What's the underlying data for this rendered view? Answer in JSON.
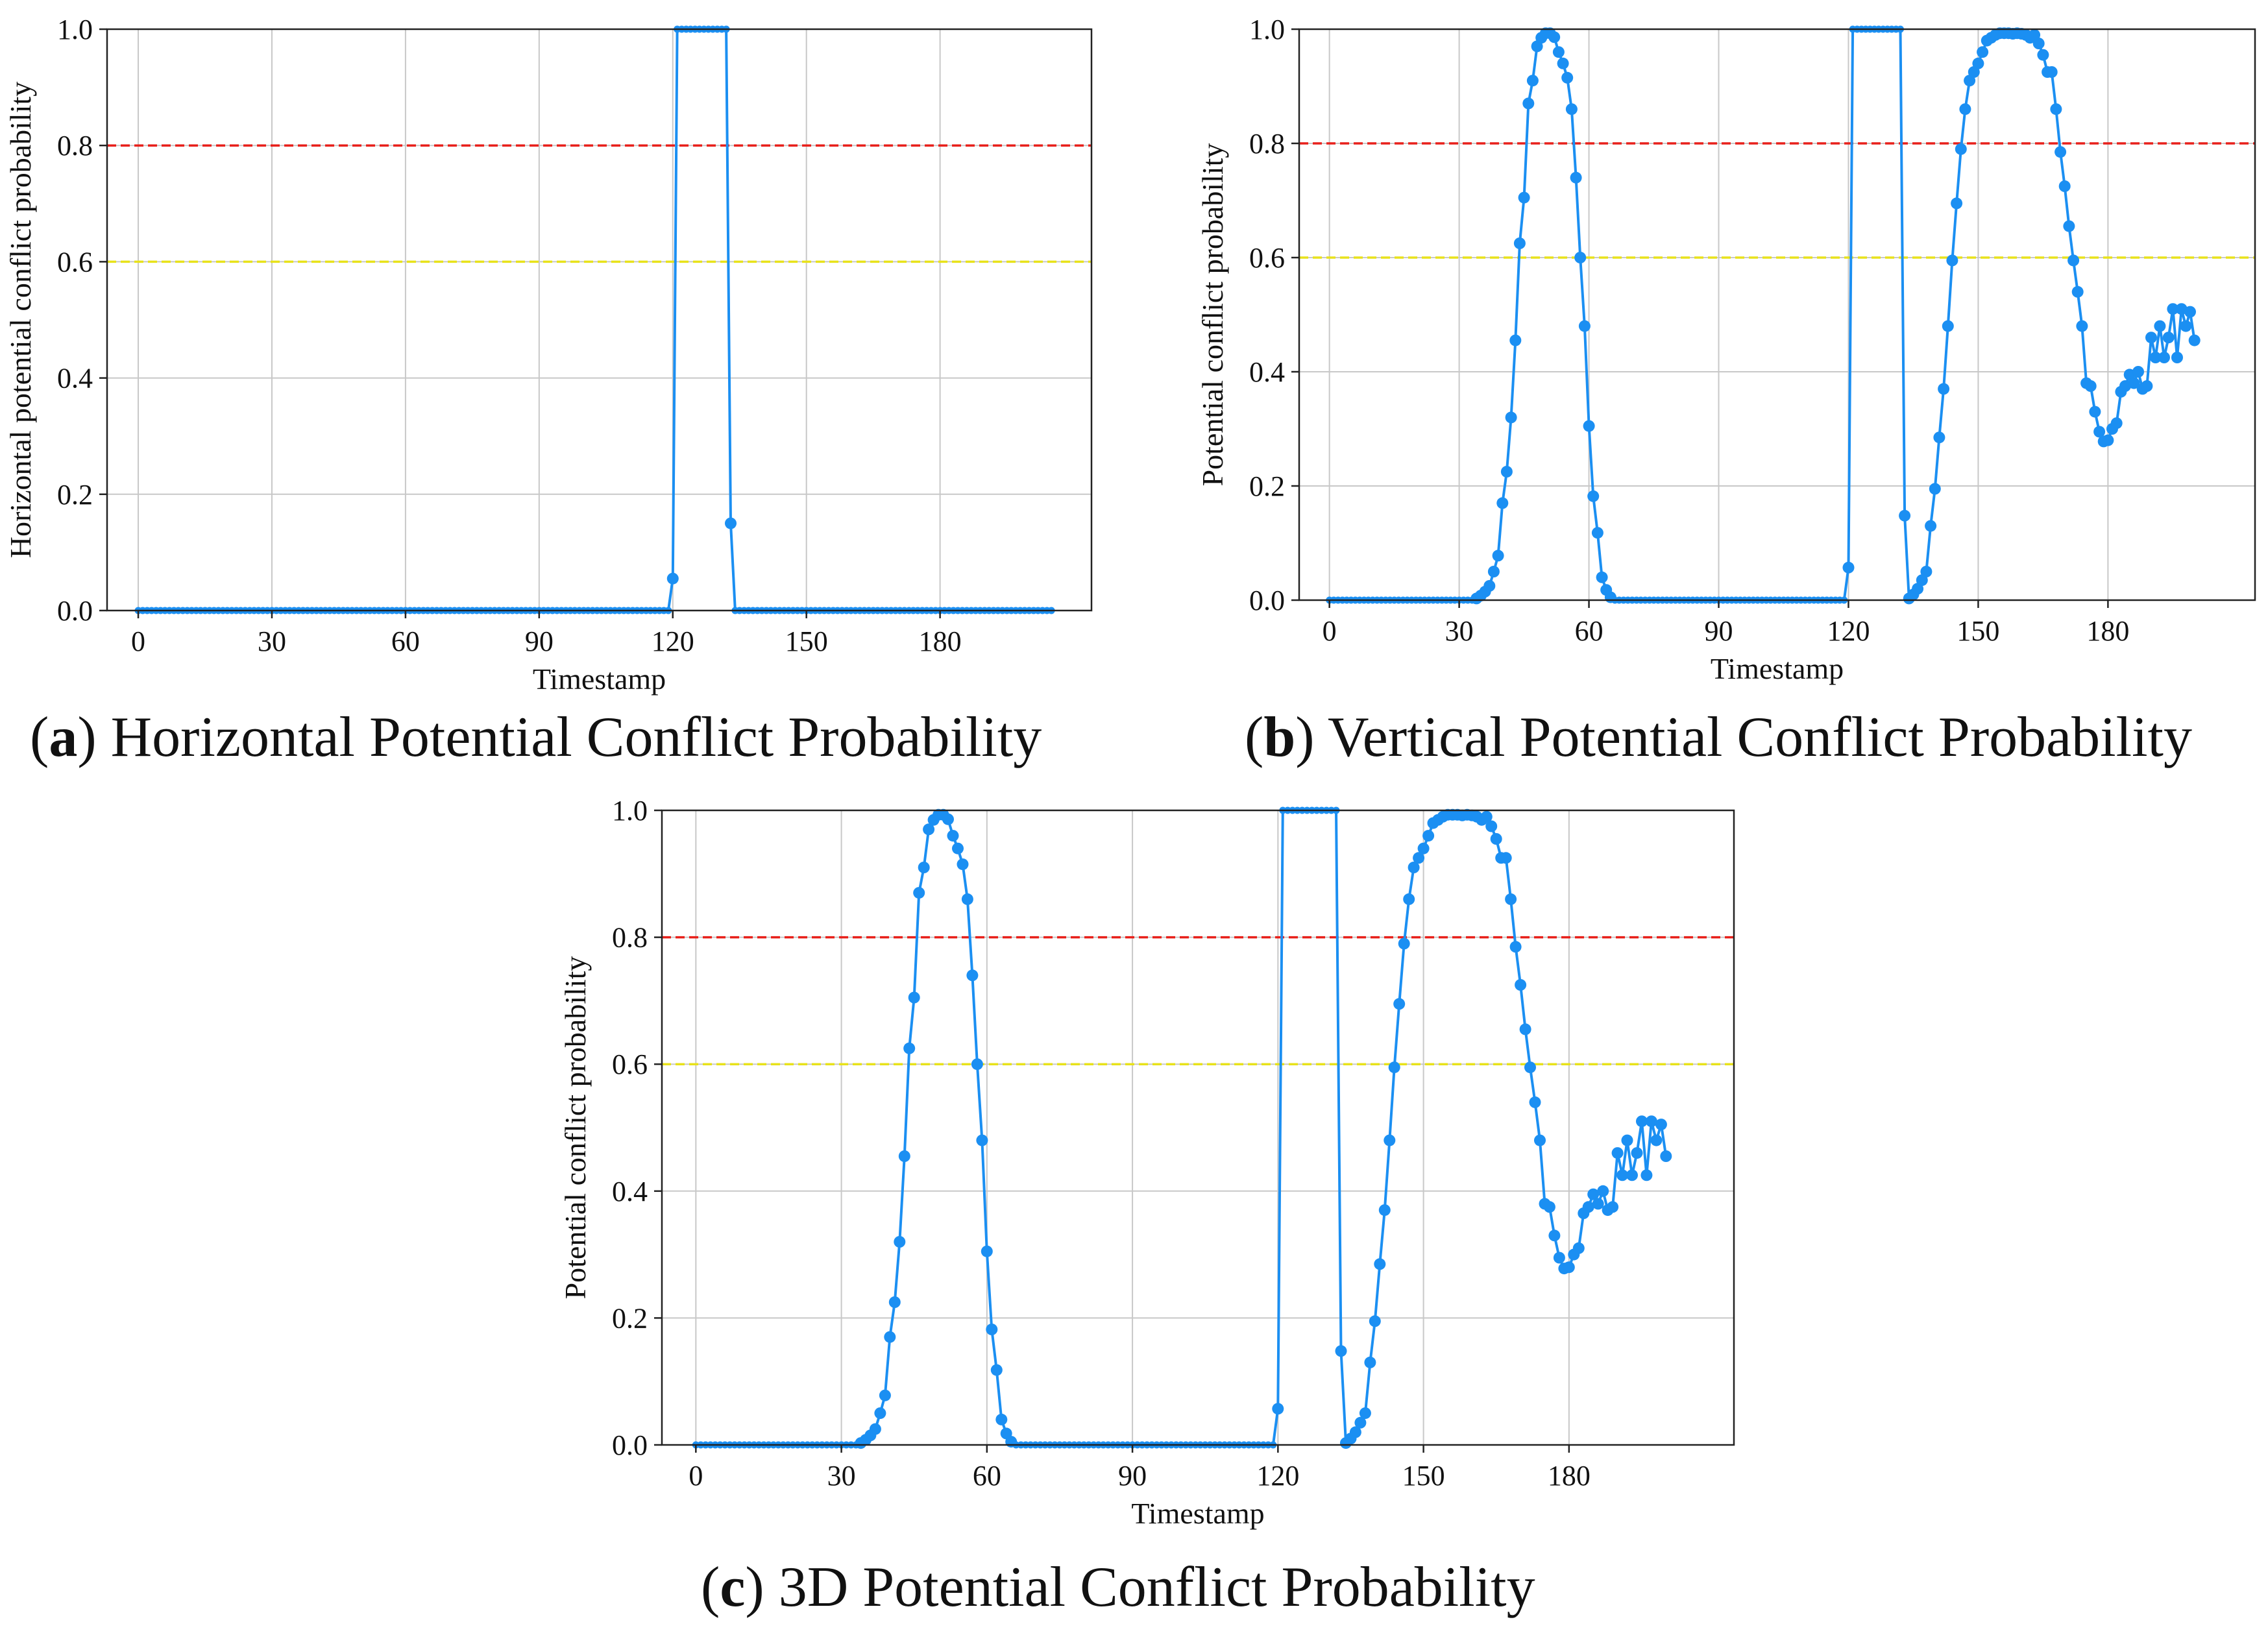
{
  "captions": [
    {
      "letter": "a",
      "text": " Horizontal Potential Conflict Probability"
    },
    {
      "letter": "b",
      "text": " Vertical Potential Conflict Probability"
    },
    {
      "letter": "c",
      "text": " 3D Potential Conflict Probability"
    }
  ],
  "colors": {
    "series": "#1b8ff2",
    "red_line": "#e8201b",
    "yellow_line": "#e8e21b",
    "grid": "#c8c8c8"
  },
  "chart_data": [
    {
      "type": "line",
      "title": "",
      "xlabel": "Timestamp",
      "ylabel": "Horizontal potential conflict probability",
      "xlim": [
        -7,
        214
      ],
      "ylim": [
        0,
        1
      ],
      "xticks": [
        0,
        30,
        60,
        90,
        120,
        150,
        180
      ],
      "yticks": [
        0.0,
        0.2,
        0.4,
        0.6,
        0.8,
        1.0
      ],
      "hlines": [
        {
          "y": 0.8,
          "color": "red",
          "style": "dashed"
        },
        {
          "y": 0.6,
          "color": "yellow",
          "style": "dashed"
        }
      ],
      "series": [
        {
          "name": "Horizontal",
          "points": [
            [
              0,
              0
            ],
            [
              119,
              0
            ],
            [
              120,
              0.055
            ],
            [
              121,
              1.0
            ],
            [
              132,
              1.0
            ],
            [
              133,
              0.15
            ],
            [
              134,
              0
            ],
            [
              205,
              0
            ]
          ]
        }
      ]
    },
    {
      "type": "line",
      "title": "",
      "xlabel": "Timestamp",
      "ylabel": "Potential conflict probability",
      "xlim": [
        -7,
        214
      ],
      "ylim": [
        0,
        1
      ],
      "xticks": [
        0,
        30,
        60,
        90,
        120,
        150,
        180
      ],
      "yticks": [
        0.0,
        0.2,
        0.4,
        0.6,
        0.8,
        1.0
      ],
      "hlines": [
        {
          "y": 0.8,
          "color": "red",
          "style": "dashed"
        },
        {
          "y": 0.6,
          "color": "yellow",
          "style": "dashed"
        }
      ],
      "series": [
        {
          "name": "Vertical",
          "points": [
            [
              0,
              0
            ],
            [
              33,
              0
            ],
            [
              34,
              0.003
            ],
            [
              35,
              0.008
            ],
            [
              36,
              0.015
            ],
            [
              37,
              0.025
            ],
            [
              38,
              0.05
            ],
            [
              39,
              0.078
            ],
            [
              40,
              0.17
            ],
            [
              41,
              0.225
            ],
            [
              42,
              0.32
            ],
            [
              43,
              0.455
            ],
            [
              44,
              0.625
            ],
            [
              45,
              0.705
            ],
            [
              46,
              0.87
            ],
            [
              47,
              0.91
            ],
            [
              48,
              0.97
            ],
            [
              49,
              0.985
            ],
            [
              50,
              0.993
            ],
            [
              51,
              0.993
            ],
            [
              52,
              0.986
            ],
            [
              53,
              0.96
            ],
            [
              54,
              0.94
            ],
            [
              55,
              0.915
            ],
            [
              56,
              0.86
            ],
            [
              57,
              0.74
            ],
            [
              58,
              0.6
            ],
            [
              59,
              0.48
            ],
            [
              60,
              0.305
            ],
            [
              61,
              0.182
            ],
            [
              62,
              0.118
            ],
            [
              63,
              0.04
            ],
            [
              64,
              0.018
            ],
            [
              65,
              0.005
            ],
            [
              66,
              0
            ],
            [
              119,
              0
            ],
            [
              120,
              0.057
            ],
            [
              121,
              1.0
            ],
            [
              132,
              1.0
            ],
            [
              133,
              0.148
            ],
            [
              134,
              0.003
            ],
            [
              135,
              0.01
            ],
            [
              136,
              0.02
            ],
            [
              137,
              0.035
            ],
            [
              138,
              0.05
            ],
            [
              139,
              0.13
            ],
            [
              140,
              0.195
            ],
            [
              141,
              0.285
            ],
            [
              142,
              0.37
            ],
            [
              143,
              0.48
            ],
            [
              144,
              0.595
            ],
            [
              145,
              0.695
            ],
            [
              146,
              0.79
            ],
            [
              147,
              0.86
            ],
            [
              148,
              0.91
            ],
            [
              149,
              0.925
            ],
            [
              150,
              0.94
            ],
            [
              151,
              0.96
            ],
            [
              152,
              0.98
            ],
            [
              153,
              0.985
            ],
            [
              154,
              0.99
            ],
            [
              155,
              0.993
            ],
            [
              156,
              0.993
            ],
            [
              157,
              0.993
            ],
            [
              158,
              0.992
            ],
            [
              159,
              0.993
            ],
            [
              160,
              0.992
            ],
            [
              161,
              0.99
            ],
            [
              162,
              0.985
            ],
            [
              163,
              0.99
            ],
            [
              164,
              0.975
            ],
            [
              165,
              0.955
            ],
            [
              166,
              0.925
            ],
            [
              167,
              0.925
            ],
            [
              168,
              0.86
            ],
            [
              169,
              0.785
            ],
            [
              170,
              0.725
            ],
            [
              171,
              0.655
            ],
            [
              172,
              0.595
            ],
            [
              173,
              0.54
            ],
            [
              174,
              0.48
            ],
            [
              175,
              0.38
            ],
            [
              176,
              0.375
            ],
            [
              177,
              0.33
            ],
            [
              178,
              0.295
            ],
            [
              179,
              0.278
            ],
            [
              180,
              0.28
            ],
            [
              181,
              0.3
            ],
            [
              182,
              0.31
            ],
            [
              183,
              0.365
            ],
            [
              184,
              0.375
            ],
            [
              185,
              0.395
            ],
            [
              186,
              0.38
            ],
            [
              187,
              0.4
            ],
            [
              188,
              0.37
            ],
            [
              189,
              0.375
            ],
            [
              190,
              0.46
            ],
            [
              191,
              0.425
            ],
            [
              192,
              0.48
            ],
            [
              193,
              0.425
            ],
            [
              194,
              0.46
            ],
            [
              195,
              0.51
            ],
            [
              196,
              0.425
            ],
            [
              197,
              0.51
            ],
            [
              198,
              0.48
            ],
            [
              199,
              0.505
            ],
            [
              200,
              0.455
            ]
          ]
        }
      ]
    },
    {
      "type": "line",
      "title": "",
      "xlabel": "Timestamp",
      "ylabel": "Potential conflict probability",
      "xlim": [
        -7,
        214
      ],
      "ylim": [
        0,
        1
      ],
      "xticks": [
        0,
        30,
        60,
        90,
        120,
        150,
        180
      ],
      "yticks": [
        0.0,
        0.2,
        0.4,
        0.6,
        0.8,
        1.0
      ],
      "hlines": [
        {
          "y": 0.8,
          "color": "red",
          "style": "dashed"
        },
        {
          "y": 0.6,
          "color": "yellow",
          "style": "dashed"
        }
      ],
      "series": [
        {
          "name": "3D",
          "points": [
            [
              0,
              0
            ],
            [
              33,
              0
            ],
            [
              34,
              0.003
            ],
            [
              35,
              0.008
            ],
            [
              36,
              0.015
            ],
            [
              37,
              0.025
            ],
            [
              38,
              0.05
            ],
            [
              39,
              0.078
            ],
            [
              40,
              0.17
            ],
            [
              41,
              0.225
            ],
            [
              42,
              0.32
            ],
            [
              43,
              0.455
            ],
            [
              44,
              0.625
            ],
            [
              45,
              0.705
            ],
            [
              46,
              0.87
            ],
            [
              47,
              0.91
            ],
            [
              48,
              0.97
            ],
            [
              49,
              0.985
            ],
            [
              50,
              0.993
            ],
            [
              51,
              0.993
            ],
            [
              52,
              0.986
            ],
            [
              53,
              0.96
            ],
            [
              54,
              0.94
            ],
            [
              55,
              0.915
            ],
            [
              56,
              0.86
            ],
            [
              57,
              0.74
            ],
            [
              58,
              0.6
            ],
            [
              59,
              0.48
            ],
            [
              60,
              0.305
            ],
            [
              61,
              0.182
            ],
            [
              62,
              0.118
            ],
            [
              63,
              0.04
            ],
            [
              64,
              0.018
            ],
            [
              65,
              0.005
            ],
            [
              66,
              0
            ],
            [
              119,
              0
            ],
            [
              120,
              0.057
            ],
            [
              121,
              1.0
            ],
            [
              132,
              1.0
            ],
            [
              133,
              0.148
            ],
            [
              134,
              0.003
            ],
            [
              135,
              0.01
            ],
            [
              136,
              0.02
            ],
            [
              137,
              0.035
            ],
            [
              138,
              0.05
            ],
            [
              139,
              0.13
            ],
            [
              140,
              0.195
            ],
            [
              141,
              0.285
            ],
            [
              142,
              0.37
            ],
            [
              143,
              0.48
            ],
            [
              144,
              0.595
            ],
            [
              145,
              0.695
            ],
            [
              146,
              0.79
            ],
            [
              147,
              0.86
            ],
            [
              148,
              0.91
            ],
            [
              149,
              0.925
            ],
            [
              150,
              0.94
            ],
            [
              151,
              0.96
            ],
            [
              152,
              0.98
            ],
            [
              153,
              0.985
            ],
            [
              154,
              0.99
            ],
            [
              155,
              0.993
            ],
            [
              156,
              0.993
            ],
            [
              157,
              0.993
            ],
            [
              158,
              0.992
            ],
            [
              159,
              0.993
            ],
            [
              160,
              0.992
            ],
            [
              161,
              0.99
            ],
            [
              162,
              0.985
            ],
            [
              163,
              0.99
            ],
            [
              164,
              0.975
            ],
            [
              165,
              0.955
            ],
            [
              166,
              0.925
            ],
            [
              167,
              0.925
            ],
            [
              168,
              0.86
            ],
            [
              169,
              0.785
            ],
            [
              170,
              0.725
            ],
            [
              171,
              0.655
            ],
            [
              172,
              0.595
            ],
            [
              173,
              0.54
            ],
            [
              174,
              0.48
            ],
            [
              175,
              0.38
            ],
            [
              176,
              0.375
            ],
            [
              177,
              0.33
            ],
            [
              178,
              0.295
            ],
            [
              179,
              0.278
            ],
            [
              180,
              0.28
            ],
            [
              181,
              0.3
            ],
            [
              182,
              0.31
            ],
            [
              183,
              0.365
            ],
            [
              184,
              0.375
            ],
            [
              185,
              0.395
            ],
            [
              186,
              0.38
            ],
            [
              187,
              0.4
            ],
            [
              188,
              0.37
            ],
            [
              189,
              0.375
            ],
            [
              190,
              0.46
            ],
            [
              191,
              0.425
            ],
            [
              192,
              0.48
            ],
            [
              193,
              0.425
            ],
            [
              194,
              0.46
            ],
            [
              195,
              0.51
            ],
            [
              196,
              0.425
            ],
            [
              197,
              0.51
            ],
            [
              198,
              0.48
            ],
            [
              199,
              0.505
            ],
            [
              200,
              0.455
            ]
          ]
        }
      ]
    }
  ]
}
